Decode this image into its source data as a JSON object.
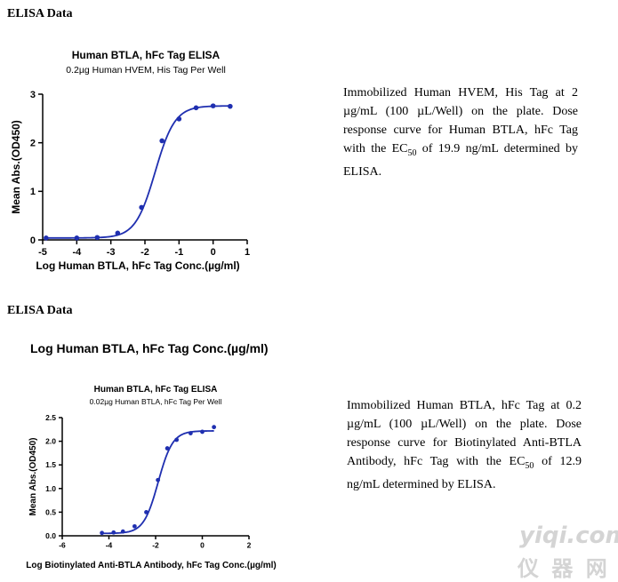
{
  "sections": [
    {
      "heading": "ELISA Data"
    },
    {
      "heading": "ELISA Data"
    }
  ],
  "standalone_label": "Log Human BTLA, hFc Tag Conc.(µg/ml)",
  "descriptions": [
    {
      "pre": "Immobilized Human HVEM, His Tag at 2 µg/mL (100 µL/Well) on the plate. Dose response curve for Human BTLA, hFc Tag with the EC",
      "sub": "50",
      "post": " of 19.9 ng/mL determined by ELISA."
    },
    {
      "pre": "Immobilized Human BTLA, hFc Tag at 0.2 µg/mL (100 µL/Well) on the plate. Dose response curve for Biotinylated Anti-BTLA Antibody, hFc Tag with the EC",
      "sub": "50",
      "post": " of 12.9 ng/mL determined by ELISA."
    }
  ],
  "watermark": {
    "top": "yiqi.com",
    "bottom": "仪 器 网"
  },
  "colors": {
    "curve": "#1f2fb0",
    "axis": "#000000"
  },
  "chart_data": [
    {
      "type": "scatter",
      "title": "Human BTLA, hFc Tag ELISA",
      "subtitle": "0.2µg Human HVEM, His Tag Per Well",
      "xlabel": "Log Human BTLA, hFc Tag Conc.(µg/ml)",
      "ylabel": "Mean Abs.(OD450)",
      "xlim": [
        -5,
        1
      ],
      "ylim": [
        0,
        3
      ],
      "xticks": [
        "-5",
        "-4",
        "-3",
        "-2",
        "-1",
        "0",
        "1"
      ],
      "yticks": [
        "0",
        "1",
        "2",
        "3"
      ],
      "x": [
        -4.9,
        -4.0,
        -3.4,
        -2.8,
        -2.1,
        -1.5,
        -1.0,
        -0.5,
        0.0,
        0.5
      ],
      "y": [
        0.04,
        0.04,
        0.05,
        0.14,
        0.67,
        2.04,
        2.49,
        2.72,
        2.76,
        2.75
      ],
      "fit": {
        "bottom": 0.04,
        "top": 2.76,
        "log_ec50": -1.7,
        "hill": 1.5
      }
    },
    {
      "type": "scatter",
      "title": "Human BTLA, hFc Tag ELISA",
      "subtitle": "0.02µg Human BTLA, hFc Tag Per Well",
      "xlabel": "Log Biotinylated Anti-BTLA Antibody, hFc Tag Conc.(µg/ml)",
      "ylabel": "Mean Abs.(OD450)",
      "xlim": [
        -6,
        2
      ],
      "ylim": [
        0,
        2.5
      ],
      "xticks": [
        "-6",
        "-4",
        "-2",
        "0",
        "2"
      ],
      "yticks": [
        "0.0",
        "0.5",
        "1.0",
        "1.5",
        "2.0",
        "2.5"
      ],
      "x": [
        -4.3,
        -3.8,
        -3.4,
        -2.9,
        -2.4,
        -1.9,
        -1.5,
        -1.1,
        -0.5,
        0.0,
        0.5
      ],
      "y": [
        0.06,
        0.07,
        0.09,
        0.2,
        0.5,
        1.18,
        1.85,
        2.03,
        2.17,
        2.2,
        2.3
      ],
      "fit": {
        "bottom": 0.05,
        "top": 2.22,
        "log_ec50": -1.89,
        "hill": 1.4
      }
    }
  ]
}
